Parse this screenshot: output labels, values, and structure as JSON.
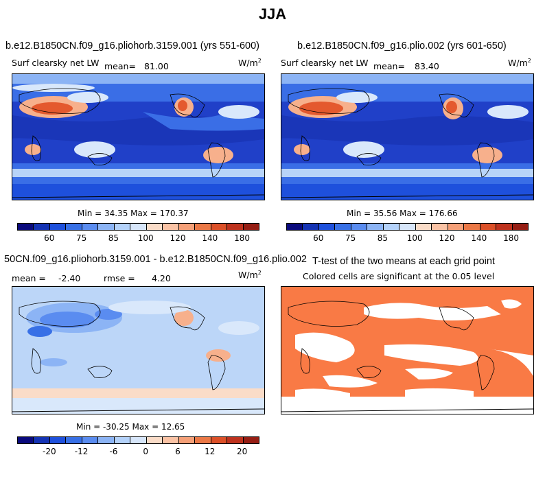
{
  "figure": {
    "title": "JJA"
  },
  "panels": {
    "p1": {
      "title": "b.e12.B1850CN.f09_g16.pliohorb.3159.001 (yrs 551-600)",
      "variable": "Surf clearsky net LW",
      "mean_label": "mean=",
      "mean_value": "81.00",
      "units": "W/m",
      "units_exp": "2",
      "minmax": "Min =  34.35 Max = 170.37"
    },
    "p2": {
      "title": "b.e12.B1850CN.f09_g16.plio.002 (yrs 601-650)",
      "variable": "Surf clearsky net LW",
      "mean_label": "mean=",
      "mean_value": "83.40",
      "units": "W/m",
      "units_exp": "2",
      "minmax": "Min =  35.56 Max = 176.66"
    },
    "p3": {
      "title": "50CN.f09_g16.pliohorb.3159.001 - b.e12.B1850CN.f09_g16.plio.002",
      "mean_label": "mean =",
      "mean_value": "-2.40",
      "rmse_label": "rmse =",
      "rmse_value": "4.20",
      "units": "W/m",
      "units_exp": "2",
      "minmax": "Min = -30.25 Max =  12.65"
    },
    "p4": {
      "title": "T-test of the two means at each grid point",
      "subtitle": "Colored cells are significant at the 0.05 level"
    }
  },
  "colorbars": {
    "abs": {
      "colors": [
        "#0a0a7c",
        "#1433b4",
        "#1e50dc",
        "#3870e6",
        "#5a8cf0",
        "#8cb4f5",
        "#b4d2fa",
        "#d7e6fa",
        "#fadcc8",
        "#fac3a5",
        "#f5a078",
        "#eb7846",
        "#dc5028",
        "#be321e",
        "#961e14"
      ],
      "ticks": [
        "60",
        "75",
        "85",
        "100",
        "120",
        "140",
        "180"
      ]
    },
    "diff": {
      "colors": [
        "#0a0a7c",
        "#1433b4",
        "#1e50dc",
        "#3870e6",
        "#5a8cf0",
        "#8cb4f5",
        "#b4d2fa",
        "#d7e6fa",
        "#fadcc8",
        "#fac3a5",
        "#f5a078",
        "#eb7846",
        "#dc5028",
        "#be321e",
        "#961e14"
      ],
      "ticks": [
        "-20",
        "-12",
        "-6",
        "0",
        "6",
        "12",
        "20"
      ]
    }
  },
  "colors": {
    "deep_ocean": "#1c3fc9",
    "mid_ocean": "#3a6ee6",
    "light": "#b8d4f8",
    "pale": "#d9e8fb",
    "warm": "#f7b08c",
    "hot": "#e4592e",
    "sig": "#f97a45"
  }
}
